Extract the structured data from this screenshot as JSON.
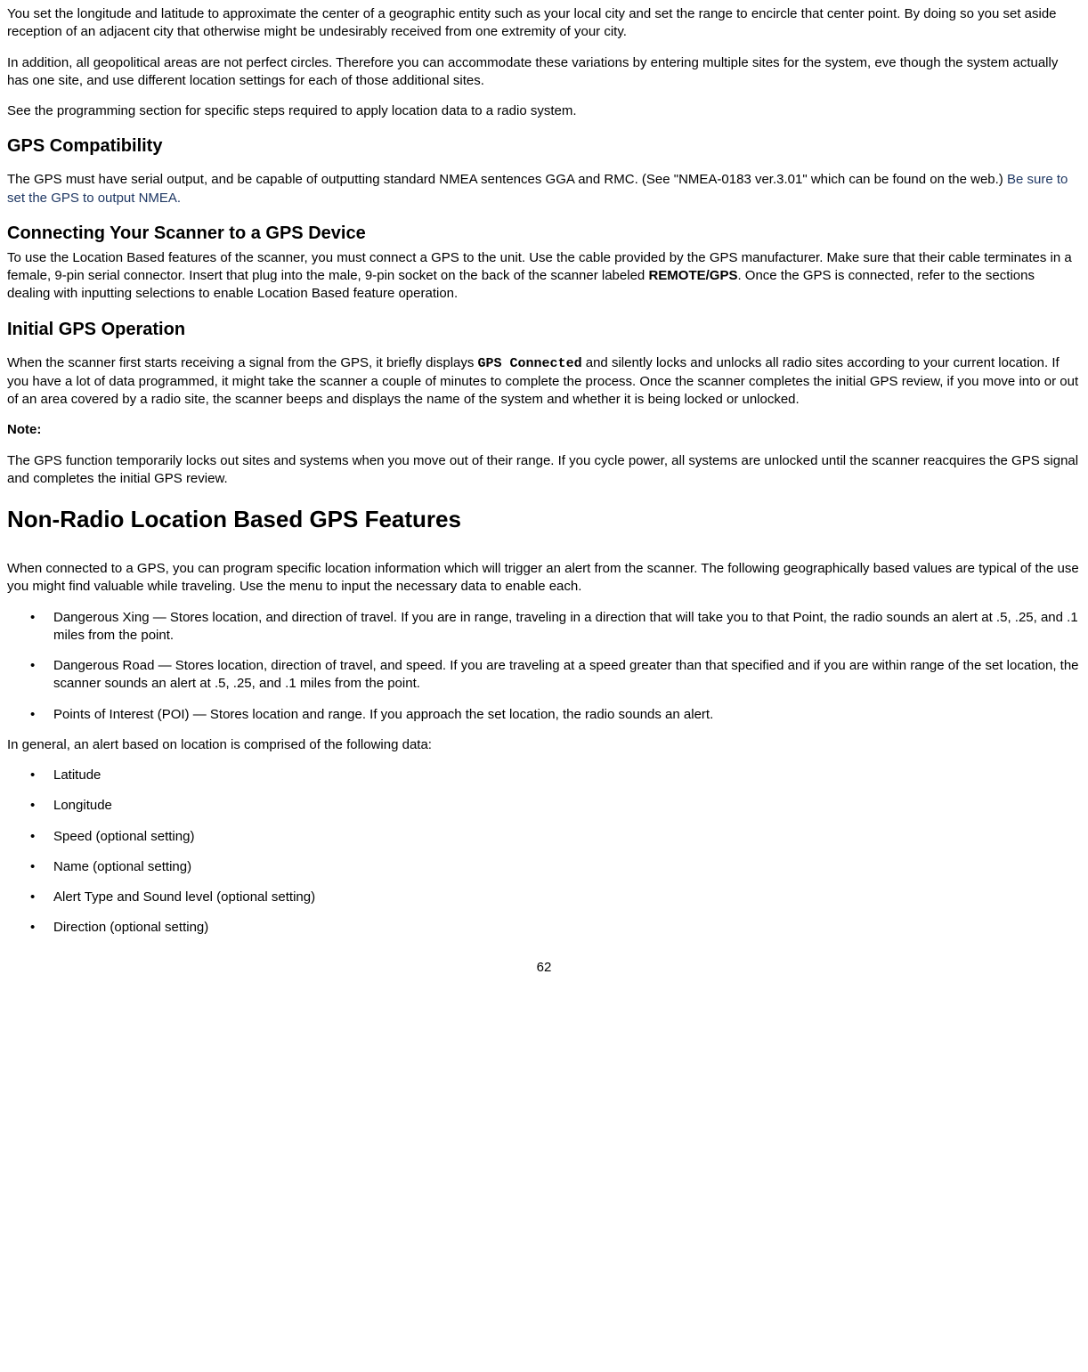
{
  "intro": {
    "p1": "You set the longitude and latitude to approximate the center of a geographic entity such as your local city and set the range to encircle that center point. By doing so you set aside reception of an adjacent city that otherwise might be undesirably received from one extremity of your city.",
    "p2": "In addition, all geopolitical areas are not perfect circles. Therefore you can accommodate these variations by entering multiple sites for the system, eve though the system actually has one site, and use different location settings for each of those additional sites.",
    "p3": "See the programming section for specific steps required to apply location data to a radio system."
  },
  "gps_compat": {
    "heading": "GPS Compatibility",
    "p1_a": "The GPS must have serial output, and be capable of outputting standard NMEA sentences GGA and RMC. (See \"NMEA-0183 ver.3.01\" which can be found on the web.) ",
    "p1_b": "Be sure to set the GPS to output NMEA."
  },
  "connecting": {
    "heading": "Connecting Your Scanner to a GPS Device",
    "p1_a": "To use the Location Based features of the scanner, you must connect a GPS to the unit. Use the cable provided by the GPS manufacturer. Make sure that their cable terminates in a female, 9-pin serial connector. Insert that plug into the male, 9-pin socket on the back of the scanner labeled ",
    "p1_bold": "REMOTE/GPS",
    "p1_b": ". Once the GPS is connected, refer to the sections dealing with inputting selections to enable Location Based feature operation."
  },
  "initial": {
    "heading": "Initial GPS Operation",
    "p1_a": "When the scanner first starts receiving a signal from the GPS, it briefly displays ",
    "p1_mono": "GPS Connected",
    "p1_b": " and silently locks and unlocks all radio sites according to your current location. If you have a lot of data programmed, it might take the scanner a couple of minutes to complete the process. Once the scanner completes the initial GPS review, if you move into or out of an area covered by a radio site, the scanner beeps and displays the name of the system and whether it is being locked or unlocked.",
    "note_label": "Note:",
    "note_body": "The GPS function temporarily locks out sites and systems when you move out of their range. If you cycle power, all systems are unlocked until the scanner reacquires the GPS signal and completes the initial GPS review."
  },
  "nonradio": {
    "heading": "Non-Radio Location Based  GPS Features",
    "p1": "When connected to a GPS, you can program specific location information which will trigger an alert from the scanner. The following geographically based values are typical of the use you might find valuable while traveling. Use the menu to input the necessary data to enable each.",
    "bullets1": [
      "Dangerous Xing — Stores location, and direction of travel. If you are in range, traveling in a direction that will take you to that Point, the radio sounds an alert at .5, .25, and .1 miles from the point.",
      "Dangerous Road — Stores location, direction of travel, and speed. If you are traveling at a speed greater than that specified and if you are within range of the set location, the scanner sounds an alert at .5, .25, and .1 miles from the point.",
      "Points of Interest (POI) — Stores location and range. If you approach the set location, the radio sounds an alert."
    ],
    "p2": "In general, an alert based on location is comprised of the following data:",
    "bullets2": [
      "Latitude",
      "Longitude",
      "Speed (optional setting)",
      "Name (optional setting)",
      "Alert Type and Sound level (optional setting)",
      "Direction (optional setting)"
    ]
  },
  "page_number": "62"
}
